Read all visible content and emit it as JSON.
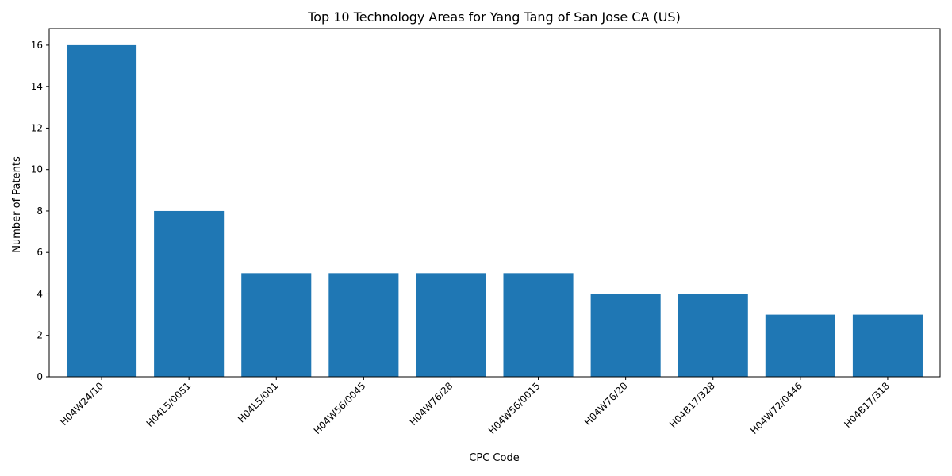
{
  "chart_data": {
    "type": "bar",
    "title": "Top 10 Technology Areas for Yang Tang of San Jose CA (US)",
    "xlabel": "CPC Code",
    "ylabel": "Number of Patents",
    "categories": [
      "H04W24/10",
      "H04L5/0051",
      "H04L5/001",
      "H04W56/0045",
      "H04W76/28",
      "H04W56/0015",
      "H04W76/20",
      "H04B17/328",
      "H04W72/0446",
      "H04B17/318"
    ],
    "values": [
      16,
      8,
      5,
      5,
      5,
      5,
      4,
      4,
      3,
      3
    ],
    "ylim": [
      0,
      16.8
    ],
    "yticks": [
      0,
      2,
      4,
      6,
      8,
      10,
      12,
      14,
      16
    ],
    "bar_color": "#1f77b4",
    "grid": false
  }
}
